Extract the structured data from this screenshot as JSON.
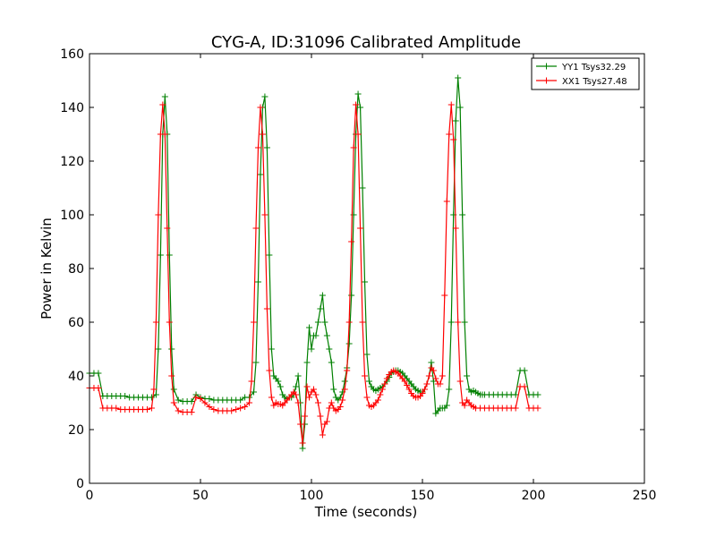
{
  "chart_data": {
    "type": "line",
    "title": "CYG-A, ID:31096 Calibrated Amplitude",
    "xlabel": "Time (seconds)",
    "ylabel": "Power in Kelvin",
    "xlim": [
      0,
      250
    ],
    "ylim": [
      0,
      160
    ],
    "xticks": [
      0,
      50,
      100,
      150,
      200,
      250
    ],
    "yticks": [
      0,
      20,
      40,
      60,
      80,
      100,
      120,
      140,
      160
    ],
    "grid": false,
    "legend_position": "top-right",
    "series": [
      {
        "name": "YY1 Tsys32.29",
        "color": "#008000",
        "points": [
          [
            0,
            41
          ],
          [
            2,
            41
          ],
          [
            4,
            41
          ],
          [
            6,
            32.5
          ],
          [
            8,
            32.5
          ],
          [
            10,
            32.5
          ],
          [
            12,
            32.5
          ],
          [
            14,
            32.5
          ],
          [
            16,
            32.5
          ],
          [
            18,
            32
          ],
          [
            20,
            32
          ],
          [
            22,
            32
          ],
          [
            24,
            32
          ],
          [
            26,
            32
          ],
          [
            28,
            32
          ],
          [
            30,
            33
          ],
          [
            31,
            50
          ],
          [
            32,
            85
          ],
          [
            33,
            130
          ],
          [
            34,
            144
          ],
          [
            35,
            130
          ],
          [
            36,
            85
          ],
          [
            37,
            50
          ],
          [
            38,
            35
          ],
          [
            40,
            31
          ],
          [
            42,
            30.5
          ],
          [
            44,
            30.5
          ],
          [
            46,
            30.5
          ],
          [
            48,
            33
          ],
          [
            50,
            32
          ],
          [
            52,
            31.5
          ],
          [
            54,
            31.5
          ],
          [
            56,
            31
          ],
          [
            58,
            31
          ],
          [
            60,
            31
          ],
          [
            62,
            31
          ],
          [
            64,
            31
          ],
          [
            66,
            31
          ],
          [
            68,
            31
          ],
          [
            70,
            32
          ],
          [
            72,
            32
          ],
          [
            74,
            34
          ],
          [
            75,
            45
          ],
          [
            76,
            75
          ],
          [
            77,
            115
          ],
          [
            78,
            140
          ],
          [
            79,
            144
          ],
          [
            80,
            125
          ],
          [
            81,
            85
          ],
          [
            82,
            50
          ],
          [
            83,
            40
          ],
          [
            84,
            39
          ],
          [
            85,
            38
          ],
          [
            86,
            36
          ],
          [
            87,
            33
          ],
          [
            88,
            32
          ],
          [
            89,
            31.5
          ],
          [
            90,
            32
          ],
          [
            91,
            32
          ],
          [
            92,
            33
          ],
          [
            93,
            36
          ],
          [
            94,
            40
          ],
          [
            95,
            30
          ],
          [
            96,
            13
          ],
          [
            97,
            22
          ],
          [
            98,
            45
          ],
          [
            99,
            58
          ],
          [
            100,
            50
          ],
          [
            101,
            55
          ],
          [
            102,
            55
          ],
          [
            103,
            60
          ],
          [
            104,
            65
          ],
          [
            105,
            70
          ],
          [
            106,
            60
          ],
          [
            107,
            55
          ],
          [
            108,
            50
          ],
          [
            109,
            45
          ],
          [
            110,
            35
          ],
          [
            111,
            32
          ],
          [
            112,
            31
          ],
          [
            113,
            32
          ],
          [
            114,
            34
          ],
          [
            115,
            38
          ],
          [
            116,
            43
          ],
          [
            117,
            52
          ],
          [
            118,
            70
          ],
          [
            119,
            100
          ],
          [
            120,
            130
          ],
          [
            121,
            145
          ],
          [
            122,
            140
          ],
          [
            123,
            110
          ],
          [
            124,
            75
          ],
          [
            125,
            48
          ],
          [
            126,
            38
          ],
          [
            127,
            36
          ],
          [
            128,
            35
          ],
          [
            129,
            34.5
          ],
          [
            130,
            35
          ],
          [
            131,
            35.5
          ],
          [
            132,
            36
          ],
          [
            133,
            37
          ],
          [
            134,
            38
          ],
          [
            135,
            39.5
          ],
          [
            136,
            41
          ],
          [
            137,
            41.5
          ],
          [
            138,
            42
          ],
          [
            139,
            42
          ],
          [
            140,
            41.5
          ],
          [
            141,
            41
          ],
          [
            142,
            40
          ],
          [
            143,
            39
          ],
          [
            144,
            38
          ],
          [
            145,
            37
          ],
          [
            146,
            36
          ],
          [
            147,
            35
          ],
          [
            148,
            34.5
          ],
          [
            149,
            34
          ],
          [
            150,
            34
          ],
          [
            151,
            35
          ],
          [
            152,
            37
          ],
          [
            153,
            40
          ],
          [
            154,
            45
          ],
          [
            155,
            38
          ],
          [
            156,
            26
          ],
          [
            157,
            27
          ],
          [
            158,
            28
          ],
          [
            159,
            28
          ],
          [
            160,
            28
          ],
          [
            161,
            29
          ],
          [
            162,
            35
          ],
          [
            163,
            60
          ],
          [
            164,
            100
          ],
          [
            165,
            135
          ],
          [
            166,
            151
          ],
          [
            167,
            140
          ],
          [
            168,
            100
          ],
          [
            169,
            60
          ],
          [
            170,
            40
          ],
          [
            171,
            35
          ],
          [
            172,
            34
          ],
          [
            173,
            34.5
          ],
          [
            174,
            34
          ],
          [
            175,
            33.5
          ],
          [
            176,
            33
          ],
          [
            177,
            33
          ],
          [
            178,
            33
          ],
          [
            180,
            33
          ],
          [
            182,
            33
          ],
          [
            184,
            33
          ],
          [
            186,
            33
          ],
          [
            188,
            33
          ],
          [
            190,
            33
          ],
          [
            192,
            33
          ],
          [
            194,
            42
          ],
          [
            196,
            42
          ],
          [
            198,
            33
          ],
          [
            200,
            33
          ],
          [
            202,
            33
          ]
        ]
      },
      {
        "name": "XX1 Tsys27.48",
        "color": "#ff0000",
        "points": [
          [
            0,
            35.5
          ],
          [
            2,
            35.5
          ],
          [
            4,
            35.5
          ],
          [
            6,
            28
          ],
          [
            8,
            28
          ],
          [
            10,
            28
          ],
          [
            12,
            28
          ],
          [
            14,
            27.5
          ],
          [
            16,
            27.5
          ],
          [
            18,
            27.5
          ],
          [
            20,
            27.5
          ],
          [
            22,
            27.5
          ],
          [
            24,
            27.5
          ],
          [
            26,
            27.5
          ],
          [
            28,
            28
          ],
          [
            29,
            35
          ],
          [
            30,
            60
          ],
          [
            31,
            100
          ],
          [
            32,
            130
          ],
          [
            33,
            141
          ],
          [
            34,
            130
          ],
          [
            35,
            95
          ],
          [
            36,
            60
          ],
          [
            37,
            40
          ],
          [
            38,
            30
          ],
          [
            40,
            27
          ],
          [
            42,
            26.5
          ],
          [
            44,
            26.5
          ],
          [
            46,
            26.5
          ],
          [
            48,
            32
          ],
          [
            50,
            31.5
          ],
          [
            52,
            30
          ],
          [
            54,
            28.5
          ],
          [
            56,
            27.5
          ],
          [
            58,
            27
          ],
          [
            60,
            27
          ],
          [
            62,
            27
          ],
          [
            64,
            27
          ],
          [
            66,
            27.5
          ],
          [
            68,
            28
          ],
          [
            70,
            28.5
          ],
          [
            72,
            30
          ],
          [
            73,
            38
          ],
          [
            74,
            60
          ],
          [
            75,
            95
          ],
          [
            76,
            125
          ],
          [
            77,
            140
          ],
          [
            78,
            130
          ],
          [
            79,
            100
          ],
          [
            80,
            65
          ],
          [
            81,
            42
          ],
          [
            82,
            32
          ],
          [
            83,
            29
          ],
          [
            84,
            30
          ],
          [
            85,
            29.5
          ],
          [
            86,
            29.5
          ],
          [
            87,
            29
          ],
          [
            88,
            30
          ],
          [
            89,
            31
          ],
          [
            90,
            32
          ],
          [
            91,
            33
          ],
          [
            92,
            34
          ],
          [
            93,
            33
          ],
          [
            94,
            30
          ],
          [
            95,
            22
          ],
          [
            96,
            15
          ],
          [
            97,
            25
          ],
          [
            98,
            36
          ],
          [
            99,
            32
          ],
          [
            100,
            34
          ],
          [
            101,
            35
          ],
          [
            102,
            33
          ],
          [
            103,
            30
          ],
          [
            104,
            25
          ],
          [
            105,
            18
          ],
          [
            106,
            22
          ],
          [
            107,
            23
          ],
          [
            108,
            28
          ],
          [
            109,
            30
          ],
          [
            110,
            28
          ],
          [
            111,
            27
          ],
          [
            112,
            27.5
          ],
          [
            113,
            28.5
          ],
          [
            114,
            31
          ],
          [
            115,
            35
          ],
          [
            116,
            42
          ],
          [
            117,
            60
          ],
          [
            118,
            90
          ],
          [
            119,
            125
          ],
          [
            120,
            141
          ],
          [
            121,
            130
          ],
          [
            122,
            95
          ],
          [
            123,
            60
          ],
          [
            124,
            40
          ],
          [
            125,
            32
          ],
          [
            126,
            29
          ],
          [
            127,
            28.5
          ],
          [
            128,
            29
          ],
          [
            129,
            30
          ],
          [
            130,
            31
          ],
          [
            131,
            33
          ],
          [
            132,
            35
          ],
          [
            133,
            37
          ],
          [
            134,
            39
          ],
          [
            135,
            40.5
          ],
          [
            136,
            41.5
          ],
          [
            137,
            42
          ],
          [
            138,
            41.5
          ],
          [
            139,
            41
          ],
          [
            140,
            40
          ],
          [
            141,
            39
          ],
          [
            142,
            38
          ],
          [
            143,
            36.5
          ],
          [
            144,
            35
          ],
          [
            145,
            33.5
          ],
          [
            146,
            32.5
          ],
          [
            147,
            32
          ],
          [
            148,
            32
          ],
          [
            149,
            32.5
          ],
          [
            150,
            33.5
          ],
          [
            151,
            35
          ],
          [
            152,
            37
          ],
          [
            153,
            40
          ],
          [
            154,
            43
          ],
          [
            155,
            42
          ],
          [
            156,
            39
          ],
          [
            157,
            37
          ],
          [
            158,
            37
          ],
          [
            159,
            40
          ],
          [
            160,
            70
          ],
          [
            161,
            105
          ],
          [
            162,
            130
          ],
          [
            163,
            141
          ],
          [
            164,
            128
          ],
          [
            165,
            95
          ],
          [
            166,
            60
          ],
          [
            167,
            38
          ],
          [
            168,
            30
          ],
          [
            169,
            29
          ],
          [
            170,
            31
          ],
          [
            171,
            30
          ],
          [
            172,
            29
          ],
          [
            173,
            28.5
          ],
          [
            174,
            28
          ],
          [
            176,
            28
          ],
          [
            178,
            28
          ],
          [
            180,
            28
          ],
          [
            182,
            28
          ],
          [
            184,
            28
          ],
          [
            186,
            28
          ],
          [
            188,
            28
          ],
          [
            190,
            28
          ],
          [
            192,
            28
          ],
          [
            194,
            36
          ],
          [
            196,
            36
          ],
          [
            198,
            28
          ],
          [
            200,
            28
          ],
          [
            202,
            28
          ]
        ]
      }
    ]
  }
}
